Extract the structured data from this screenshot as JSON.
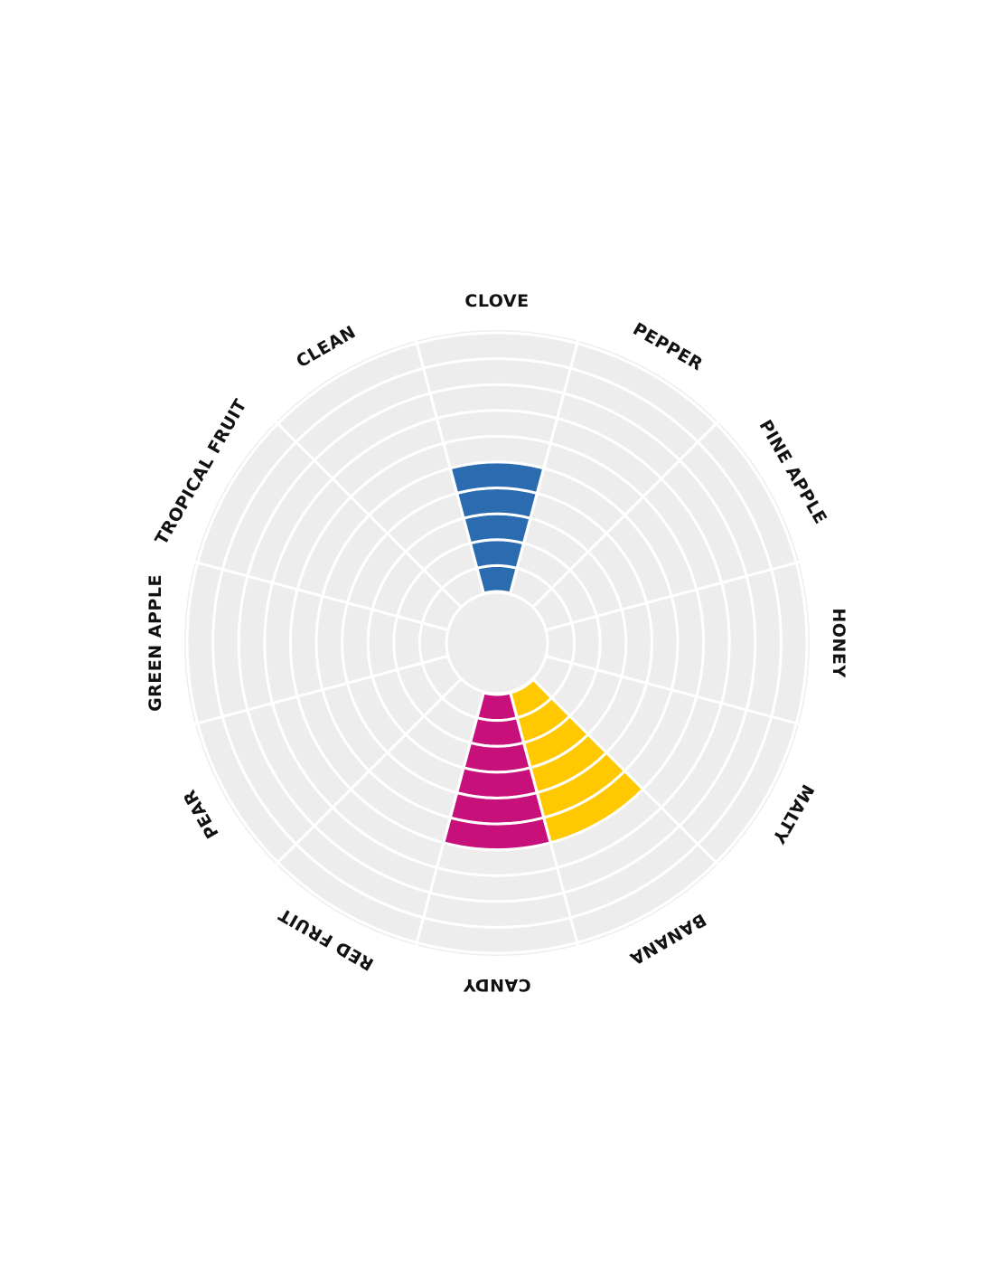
{
  "chart_data": {
    "type": "radial-bar",
    "title": "",
    "categories": [
      "CLOVE",
      "PEPPER",
      "PINE APPLE",
      "HONEY",
      "MALTY",
      "BANANA",
      "CANDY",
      "RED FRUIT",
      "PEAR",
      "GREEN APPLE",
      "TROPICAL FRUIT",
      "CLEAN"
    ],
    "values": [
      5,
      0,
      0,
      0,
      0,
      6,
      6,
      0,
      0,
      0,
      0,
      0
    ],
    "max_value": 10,
    "grid": true,
    "colors": {
      "CLOVE": "#2b6cb0",
      "BANANA": "#ffc800",
      "CANDY": "#c8107a",
      "background": "#ededed",
      "grid": "#ffffff"
    }
  }
}
